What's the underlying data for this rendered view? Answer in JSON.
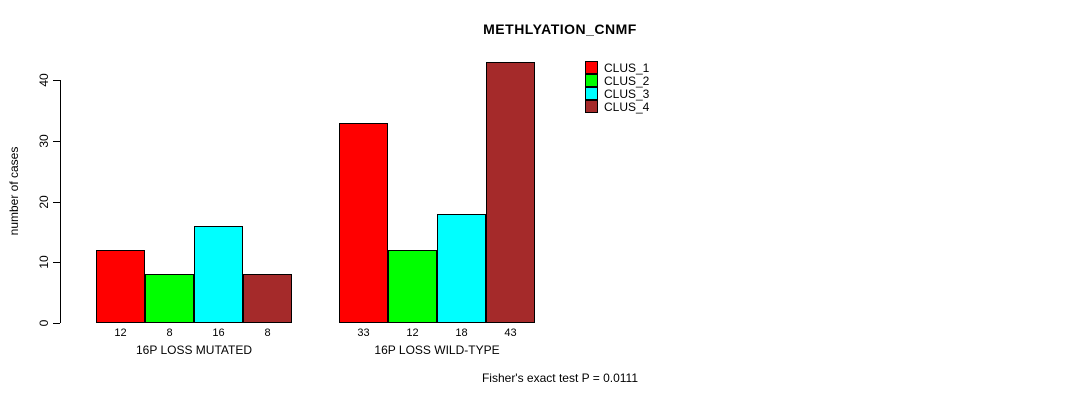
{
  "chart_data": {
    "type": "bar",
    "title": "METHLYATION_CNMF",
    "ylabel": "number of cases",
    "xlabel": "",
    "categories": [
      "16P LOSS MUTATED",
      "16P LOSS WILD-TYPE"
    ],
    "series": [
      {
        "name": "CLUS_1",
        "color": "#FF0000",
        "values": [
          12,
          33
        ]
      },
      {
        "name": "CLUS_2",
        "color": "#00FF00",
        "values": [
          8,
          12
        ]
      },
      {
        "name": "CLUS_3",
        "color": "#00FFFF",
        "values": [
          16,
          18
        ]
      },
      {
        "name": "CLUS_4",
        "color": "#A52A2A",
        "values": [
          8,
          43
        ]
      }
    ],
    "yticks": [
      0,
      10,
      20,
      30,
      40
    ],
    "ylim": [
      0,
      43
    ],
    "grid": false,
    "legend_position": "top-right",
    "bar_value_labels_shown": true,
    "annotation": "Fisher's exact test P = 0.0111"
  }
}
